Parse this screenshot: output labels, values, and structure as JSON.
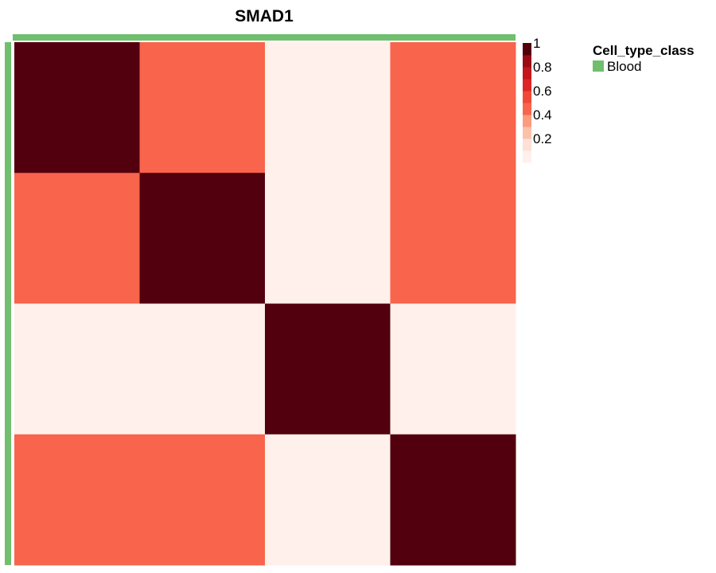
{
  "chart_data": {
    "type": "heatmap",
    "title": "SMAD1",
    "xlabel": "",
    "ylabel": "",
    "rows": 4,
    "cols": 4,
    "values": [
      [
        1.0,
        0.45,
        0.05,
        0.45
      ],
      [
        0.45,
        1.0,
        0.05,
        0.45
      ],
      [
        0.05,
        0.05,
        1.0,
        0.05
      ],
      [
        0.45,
        0.45,
        0.05,
        1.0
      ]
    ],
    "color_scale": {
      "min": 0,
      "max": 1,
      "ticks": [
        1,
        0.2,
        0.4,
        0.6,
        0.8
      ],
      "tick_labels": [
        "1",
        "0.8",
        "0.6",
        "0.4",
        "0.2"
      ],
      "tick_values": [
        1,
        0.8,
        0.6,
        0.4,
        0.2
      ],
      "bins": [
        {
          "from": 0.0,
          "to": 0.1,
          "color": "#fff0eb"
        },
        {
          "from": 0.1,
          "to": 0.2,
          "color": "#fde1d6"
        },
        {
          "from": 0.2,
          "to": 0.3,
          "color": "#fcc1a9"
        },
        {
          "from": 0.3,
          "to": 0.4,
          "color": "#fc9b7d"
        },
        {
          "from": 0.4,
          "to": 0.5,
          "color": "#f8644c"
        },
        {
          "from": 0.5,
          "to": 0.6,
          "color": "#f04a37"
        },
        {
          "from": 0.6,
          "to": 0.7,
          "color": "#de2626"
        },
        {
          "from": 0.7,
          "to": 0.8,
          "color": "#c4161c"
        },
        {
          "from": 0.8,
          "to": 0.9,
          "color": "#9a0c15"
        },
        {
          "from": 0.9,
          "to": 1.0,
          "color": "#52000d"
        }
      ]
    },
    "annotation": {
      "title": "Cell_type_class",
      "categories": [
        {
          "name": "Blood",
          "color": "#6fbf6e"
        }
      ]
    },
    "grid": false
  }
}
